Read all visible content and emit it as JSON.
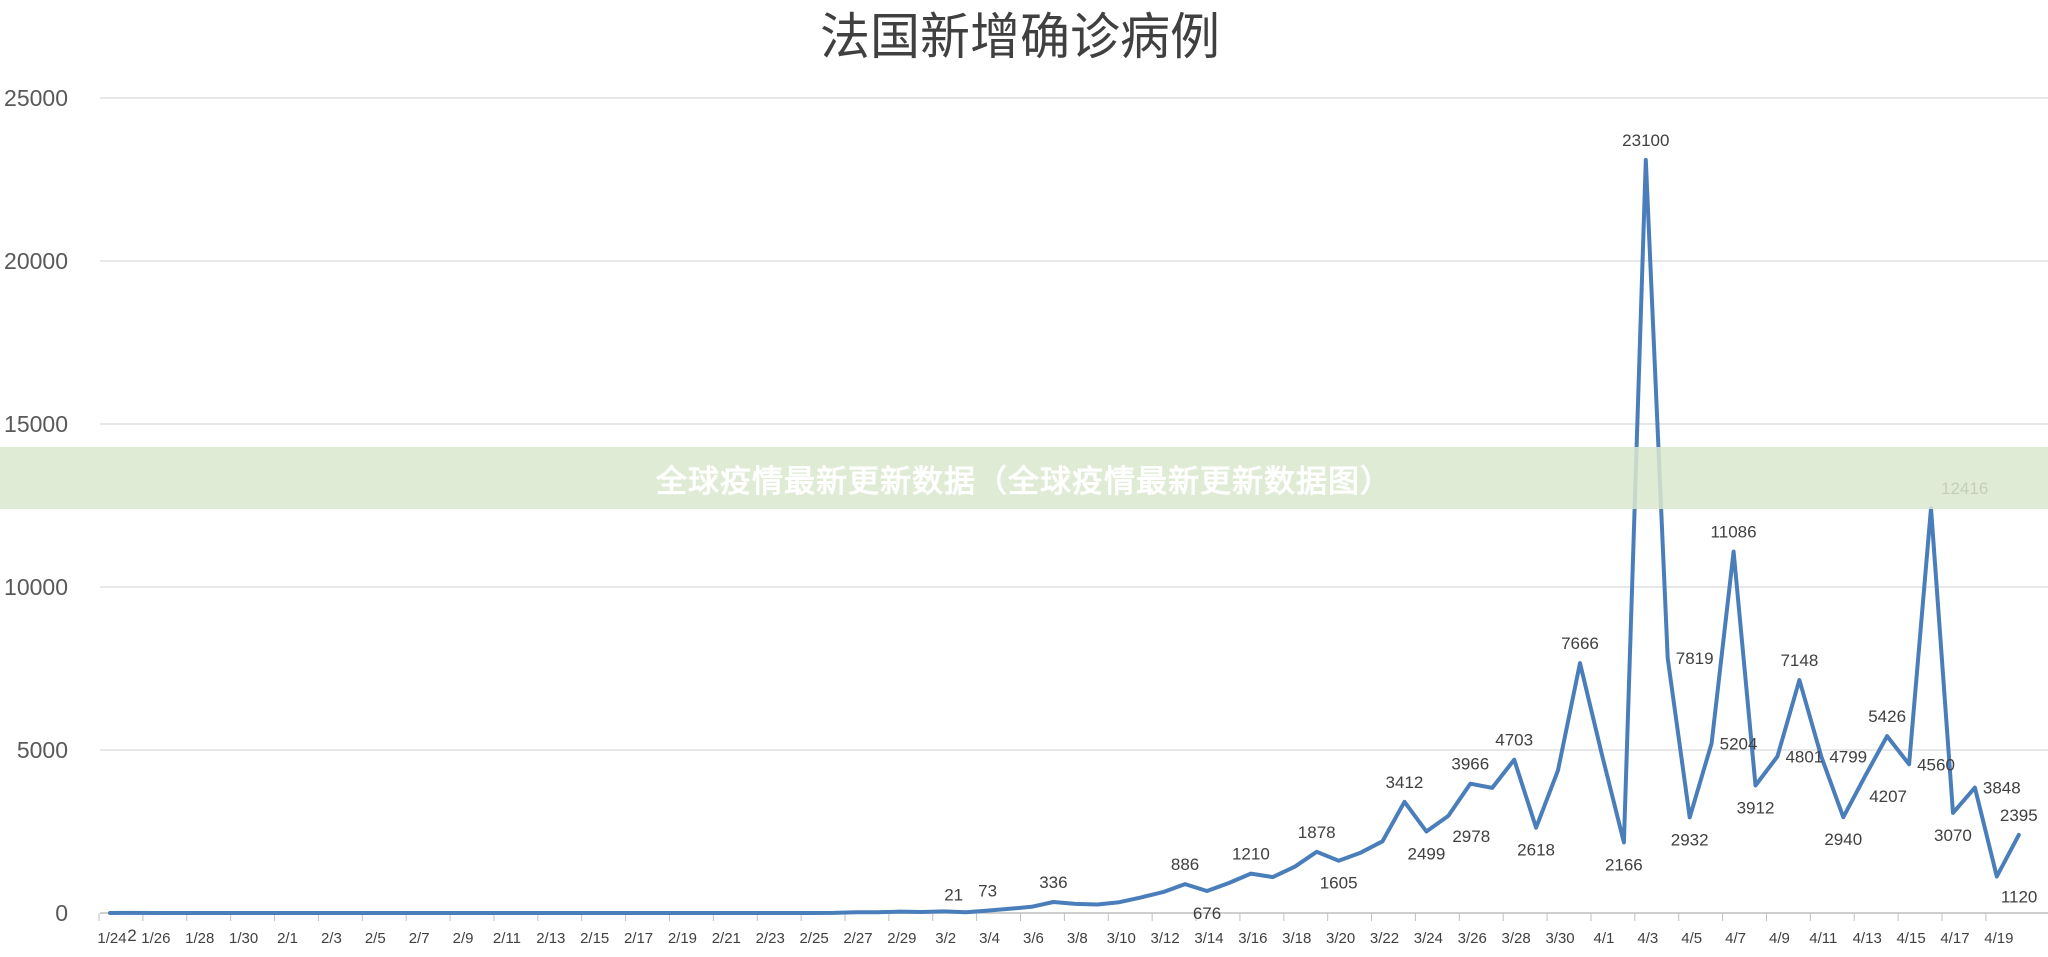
{
  "chart_data": {
    "type": "line",
    "title": "法国新增确诊病例",
    "xlabel": "",
    "ylabel": "",
    "ylim": [
      0,
      25000
    ],
    "yticks": [
      0,
      5000,
      10000,
      15000,
      20000,
      25000
    ],
    "grid": true,
    "legend": "none",
    "line_color": "#4a7ebb",
    "x_tick_labels": [
      "1/24",
      "1/26",
      "1/28",
      "1/30",
      "2/1",
      "2/3",
      "2/5",
      "2/7",
      "2/9",
      "2/11",
      "2/13",
      "2/15",
      "2/17",
      "2/19",
      "2/21",
      "2/23",
      "2/25",
      "2/27",
      "2/29",
      "3/2",
      "3/4",
      "3/6",
      "3/8",
      "3/10",
      "3/12",
      "3/14",
      "3/16",
      "3/18",
      "3/20",
      "3/22",
      "3/24",
      "3/26",
      "3/28",
      "3/30",
      "4/1",
      "4/3",
      "4/5",
      "4/7",
      "4/9",
      "4/11",
      "4/13",
      "4/15",
      "4/17",
      "4/19"
    ],
    "series": [
      {
        "name": "新增确诊",
        "start_date": "1/24",
        "values": [
          0,
          2,
          0,
          0,
          0,
          0,
          0,
          0,
          0,
          0,
          0,
          0,
          0,
          0,
          0,
          0,
          0,
          0,
          0,
          0,
          0,
          0,
          0,
          0,
          0,
          0,
          0,
          0,
          0,
          0,
          0,
          0,
          0,
          2,
          20,
          20,
          43,
          30,
          48,
          21,
          73,
          130,
          190,
          336,
          280,
          260,
          330,
          480,
          640,
          886,
          676,
          920,
          1210,
          1100,
          1420,
          1878,
          1605,
          1850,
          2200,
          3412,
          2499,
          2978,
          3966,
          3838,
          4703,
          2618,
          4376,
          7666,
          4861,
          2166,
          23100,
          7819,
          2932,
          5204,
          11086,
          3912,
          4801,
          7148,
          4799,
          2940,
          4207,
          5426,
          4560,
          12416,
          3070,
          3848,
          1120,
          2395
        ]
      }
    ],
    "data_labels": [
      {
        "index": 1,
        "text": "2",
        "pos": "below"
      },
      {
        "index": 39,
        "text": "21",
        "pos": "aboveleft"
      },
      {
        "index": 40,
        "text": "73",
        "pos": "above"
      },
      {
        "index": 43,
        "text": "336",
        "pos": "above"
      },
      {
        "index": 49,
        "text": "886",
        "pos": "above"
      },
      {
        "index": 50,
        "text": "676",
        "pos": "below"
      },
      {
        "index": 52,
        "text": "1210",
        "pos": "above"
      },
      {
        "index": 55,
        "text": "1878",
        "pos": "above"
      },
      {
        "index": 56,
        "text": "1605",
        "pos": "below"
      },
      {
        "index": 59,
        "text": "3412",
        "pos": "above"
      },
      {
        "index": 60,
        "text": "2499",
        "pos": "below"
      },
      {
        "index": 61,
        "text": "2978",
        "pos": "belowright"
      },
      {
        "index": 62,
        "text": "3966",
        "pos": "above"
      },
      {
        "index": 64,
        "text": "4703",
        "pos": "above"
      },
      {
        "index": 65,
        "text": "2618",
        "pos": "below"
      },
      {
        "index": 67,
        "text": "7666",
        "pos": "above"
      },
      {
        "index": 69,
        "text": "2166",
        "pos": "below"
      },
      {
        "index": 70,
        "text": "23100",
        "pos": "above"
      },
      {
        "index": 71,
        "text": "7819",
        "pos": "right"
      },
      {
        "index": 72,
        "text": "2932",
        "pos": "below"
      },
      {
        "index": 73,
        "text": "5204",
        "pos": "right"
      },
      {
        "index": 74,
        "text": "11086",
        "pos": "above"
      },
      {
        "index": 75,
        "text": "3912",
        "pos": "below"
      },
      {
        "index": 76,
        "text": "4801",
        "pos": "right"
      },
      {
        "index": 77,
        "text": "7148",
        "pos": "above"
      },
      {
        "index": 78,
        "text": "4799",
        "pos": "right"
      },
      {
        "index": 79,
        "text": "2940",
        "pos": "below"
      },
      {
        "index": 80,
        "text": "4207",
        "pos": "belowright"
      },
      {
        "index": 81,
        "text": "5426",
        "pos": "above"
      },
      {
        "index": 82,
        "text": "4560",
        "pos": "right"
      },
      {
        "index": 83,
        "text": "12416",
        "pos": "aboveright"
      },
      {
        "index": 84,
        "text": "3070",
        "pos": "below"
      },
      {
        "index": 85,
        "text": "3848",
        "pos": "right"
      },
      {
        "index": 86,
        "text": "1120",
        "pos": "belowright"
      },
      {
        "index": 87,
        "text": "2395",
        "pos": "above"
      }
    ]
  },
  "banner": {
    "text": "全球疫情最新更新数据（全球疫情最新更新数据图）"
  }
}
